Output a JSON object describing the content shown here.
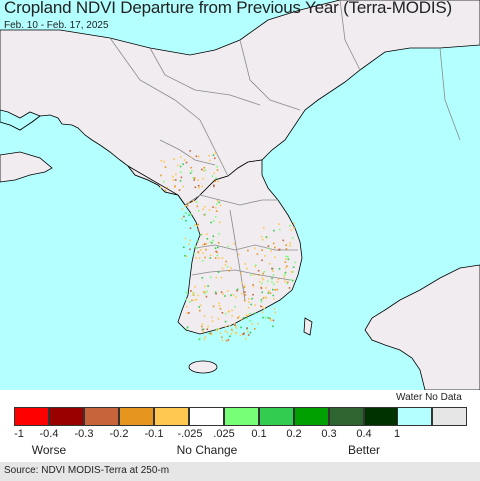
{
  "title": "Cropland NDVI Departure from Previous Year (Terra-MODIS)",
  "date_range": "Feb. 10 - Feb. 17, 2025",
  "colors": {
    "water": "#b4ffff",
    "land": "#f0ecf0",
    "border": "#8a8a8a",
    "coast": "#000000"
  },
  "legend": {
    "swatches": [
      {
        "color": "#ff0000"
      },
      {
        "color": "#990000"
      },
      {
        "color": "#c8643c"
      },
      {
        "color": "#e6961e"
      },
      {
        "color": "#ffc850"
      },
      {
        "color": "#ffffff"
      },
      {
        "color": "#78ff78"
      },
      {
        "color": "#32cd50"
      },
      {
        "color": "#00a000"
      },
      {
        "color": "#2d6430"
      },
      {
        "color": "#003200"
      }
    ],
    "ticks": [
      "-1",
      "-0.4",
      "-0.3",
      "-0.2",
      "-0.1",
      "-.025",
      ".025",
      "0.1",
      "0.2",
      "0.3",
      "0.4",
      "1"
    ],
    "groups": {
      "worse": "Worse",
      "no_change": "No Change",
      "better": "Better"
    },
    "special_label": "Water No Data",
    "water_color": "#b4ffff",
    "nodata_color": "#e6e6e6"
  },
  "source": "Source: NDVI MODIS-Terra at 250-m"
}
